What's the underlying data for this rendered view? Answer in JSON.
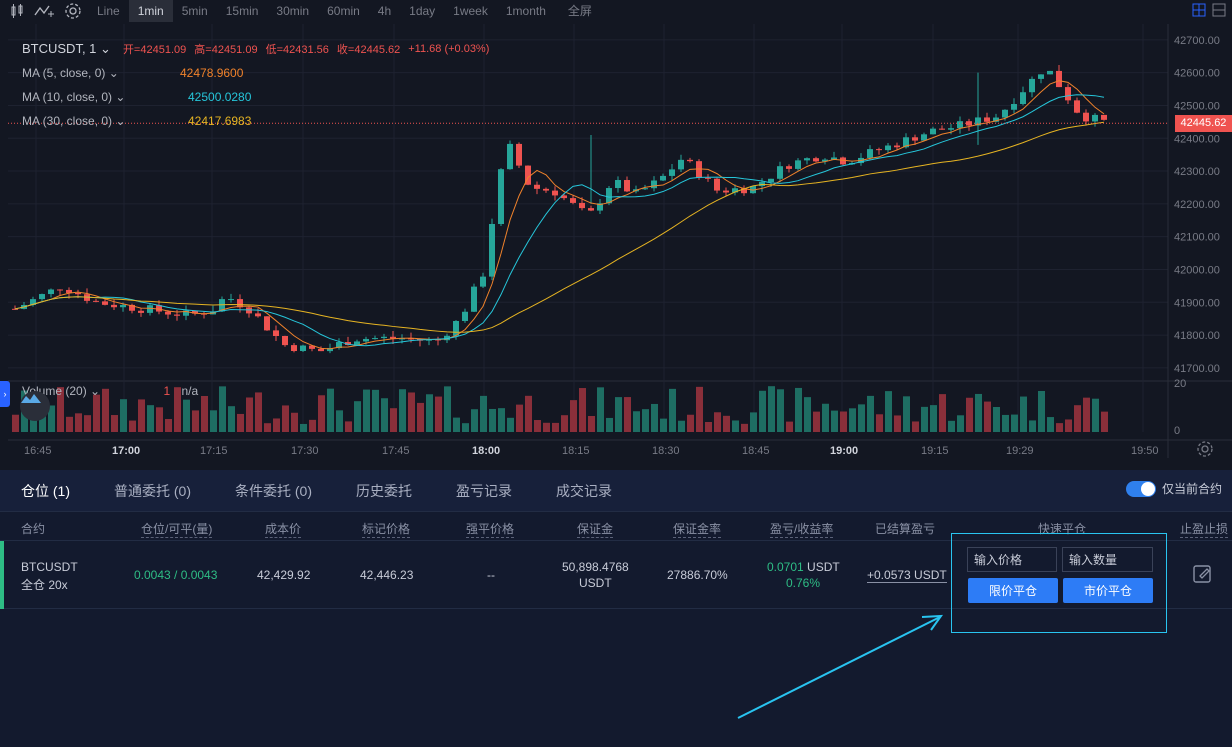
{
  "toolbar": {
    "timeframes": [
      "Line",
      "1min",
      "5min",
      "15min",
      "30min",
      "60min",
      "4h",
      "1day",
      "1week",
      "1month",
      "全屏"
    ],
    "active": "1min"
  },
  "chart": {
    "symbol": "BTCUSDT, 1",
    "ohlc": {
      "open_label": "开=",
      "open": "42451.09",
      "high_label": "高=",
      "high": "42451.09",
      "low_label": "低=",
      "low": "42431.56",
      "close_label": "收=",
      "close": "42445.62",
      "change": "+11.68 (+0.03%)"
    },
    "ma": [
      {
        "name": "MA (5, close, 0)",
        "value": "42478.9600",
        "color": "#f0822b"
      },
      {
        "name": "MA (10, close, 0)",
        "value": "42500.0280",
        "color": "#26c6da"
      },
      {
        "name": "MA (30, close, 0)",
        "value": "42417.6983",
        "color": "#e6b422"
      }
    ],
    "last_price": "42445.62",
    "price_ticks": [
      "42700.00",
      "42600.00",
      "42500.00",
      "42400.00",
      "42300.00",
      "42200.00",
      "42100.00",
      "42000.00",
      "41900.00",
      "41800.00",
      "41700.00"
    ],
    "volume_label": "Volume (20)",
    "volume_value": "1",
    "volume_na": "n/a",
    "volume_ticks": [
      "20",
      "0"
    ],
    "time_ticks": [
      "16:45",
      "17:00",
      "17:15",
      "17:30",
      "17:45",
      "18:00",
      "18:15",
      "18:30",
      "18:45",
      "19:00",
      "19:15",
      "19:29",
      "19:50"
    ],
    "bold_ticks": [
      "17:00",
      "18:00",
      "19:00"
    ]
  },
  "panel": {
    "tabs": [
      "仓位 (1)",
      "普通委托 (0)",
      "条件委托 (0)",
      "历史委托",
      "盈亏记录",
      "成交记录"
    ],
    "toggle_label": "仅当前合约",
    "headers": [
      "合约",
      "仓位/可平(量)",
      "成本价",
      "标记价格",
      "强平价格",
      "保证金",
      "保证金率",
      "盈亏/收益率",
      "已结算盈亏",
      "快速平仓",
      "止盈止损"
    ],
    "row": {
      "contract": "BTCUSDT",
      "mode": "全仓 20x",
      "position": "0.0043 / 0.0043",
      "cost": "42,429.92",
      "mark": "42,446.23",
      "liq": "--",
      "margin": "50,898.4768",
      "margin_unit": "USDT",
      "margin_rate": "27886.70%",
      "pnl": "0.0701",
      "pnl_unit": "USDT",
      "pnl_rate": "0.76%",
      "settled": "+0.0573 USDT"
    },
    "quick_close": {
      "price_placeholder": "输入价格",
      "qty_placeholder": "输入数量",
      "limit_btn": "限价平仓",
      "market_btn": "市价平仓"
    }
  },
  "colors": {
    "up": "#26a69a",
    "down": "#ef5350",
    "accent": "#2d7cf6",
    "highlight": "#29c4f0"
  }
}
